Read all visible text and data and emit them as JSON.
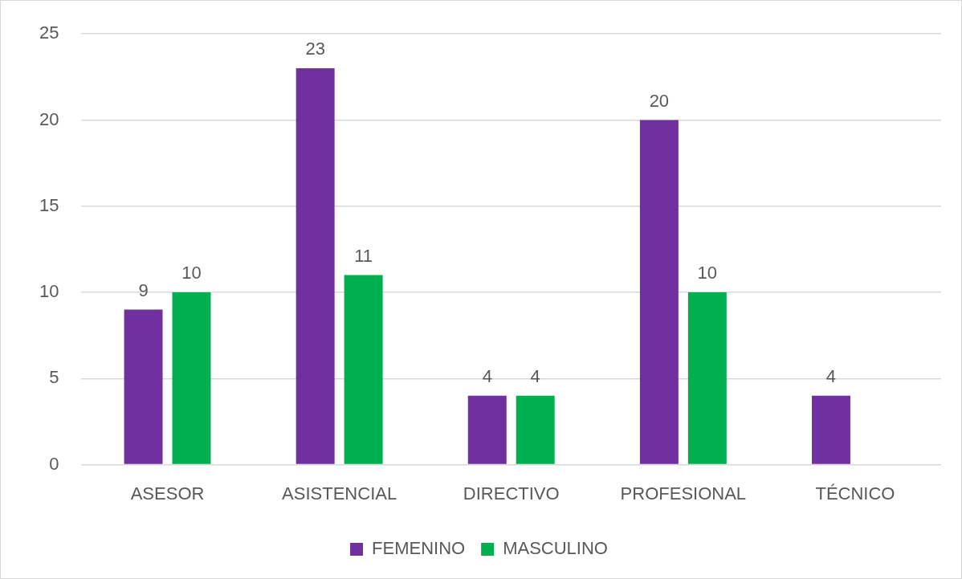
{
  "chart_data": {
    "type": "bar",
    "categories": [
      "ASESOR",
      "ASISTENCIAL",
      "DIRECTIVO",
      "PROFESIONAL",
      "TÉCNICO"
    ],
    "series": [
      {
        "name": "FEMENINO",
        "color": "#7030a0",
        "values": [
          9,
          23,
          4,
          20,
          4
        ]
      },
      {
        "name": "MASCULINO",
        "color": "#00b050",
        "values": [
          10,
          11,
          4,
          10,
          null
        ]
      }
    ],
    "ylim": [
      0,
      25
    ],
    "yticks": [
      0,
      5,
      10,
      15,
      20,
      25
    ],
    "grid": "y",
    "legend": "bottom",
    "data_labels": true
  }
}
